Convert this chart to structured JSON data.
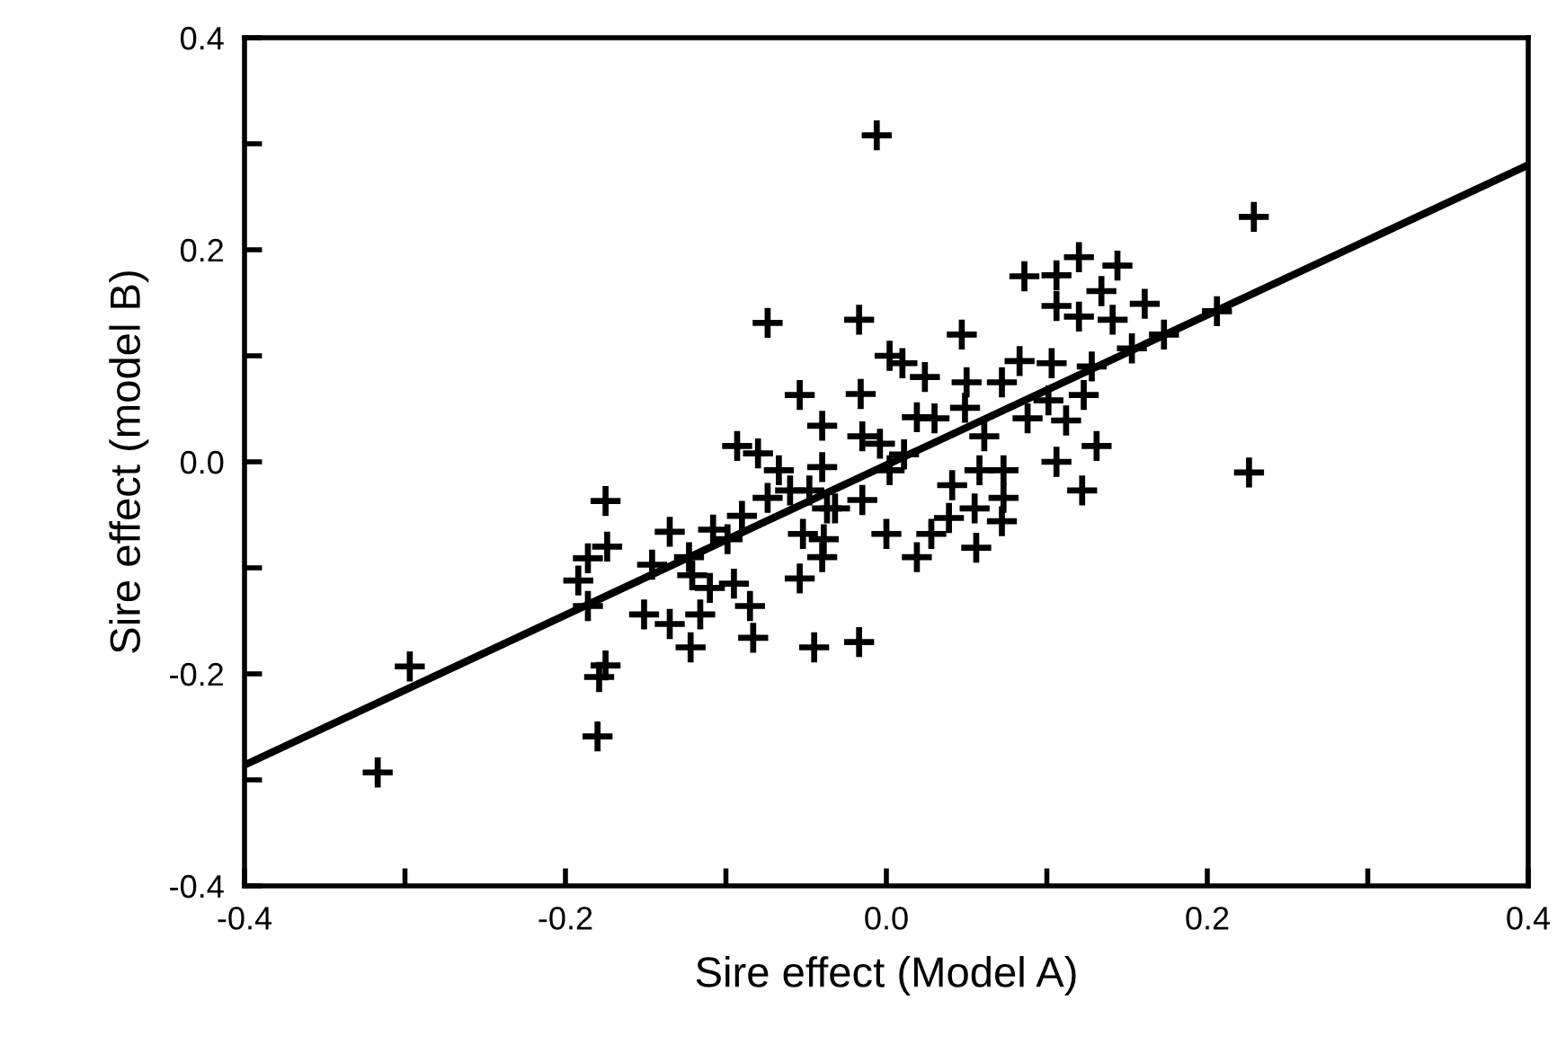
{
  "chart_data": {
    "type": "scatter",
    "xlabel": "Sire effect (Model A)",
    "ylabel": "Sire effect (model B)",
    "xlim": [
      -0.4,
      0.4
    ],
    "ylim": [
      -0.4,
      0.4
    ],
    "xticks": [
      {
        "value": -0.4,
        "label": "-0.4"
      },
      {
        "value": -0.3,
        "label": null
      },
      {
        "value": -0.2,
        "label": "-0.2"
      },
      {
        "value": -0.1,
        "label": null
      },
      {
        "value": 0,
        "label": "0.0"
      },
      {
        "value": 0.1,
        "label": null
      },
      {
        "value": 0.2,
        "label": "0.2"
      },
      {
        "value": 0.3,
        "label": null
      },
      {
        "value": 0.4,
        "label": "0.4"
      }
    ],
    "yticks": [
      {
        "value": -0.4,
        "label": "-0.4"
      },
      {
        "value": -0.3,
        "label": null
      },
      {
        "value": -0.2,
        "label": "-0.2"
      },
      {
        "value": -0.1,
        "label": null
      },
      {
        "value": 0,
        "label": "0.0"
      },
      {
        "value": 0.1,
        "label": null
      },
      {
        "value": 0.2,
        "label": "0.2"
      },
      {
        "value": 0.3,
        "label": null
      },
      {
        "value": 0.4,
        "label": "0.4"
      }
    ],
    "grid": false,
    "legend": false,
    "marker": "cross",
    "series": [
      {
        "color": "#000000",
        "x": [
          -0.317,
          -0.297,
          -0.006,
          0.229,
          -0.074,
          -0.054,
          -0.04,
          -0.175,
          -0.174,
          -0.186,
          -0.192,
          -0.186,
          -0.146,
          -0.135,
          -0.123,
          -0.121,
          -0.108,
          -0.099,
          -0.095,
          -0.085,
          -0.11,
          -0.151,
          -0.135,
          -0.116,
          -0.122,
          -0.083,
          -0.045,
          -0.054,
          -0.175,
          -0.179,
          -0.18,
          -0.093,
          -0.08,
          -0.067,
          -0.074,
          -0.09,
          -0.06,
          -0.048,
          -0.04,
          -0.052,
          -0.039,
          -0.04,
          -0.037,
          -0.017,
          0.047,
          0.086,
          0.106,
          0.12,
          0.144,
          0.134,
          0.106,
          0.12,
          0.141,
          0.161,
          0.206,
          0.173,
          0.153,
          0.128,
          0.103,
          0.083,
          0.123,
          0.101,
          0.088,
          0.112,
          0.131,
          0.106,
          0.122,
          0.226,
          -0.016,
          0.002,
          0.01,
          0.024,
          0.05,
          0.072,
          0.049,
          0.061,
          0.019,
          0.03,
          -0.015,
          0.002,
          -0.015,
          -0.032,
          0.041,
          0.058,
          0.073,
          0.073,
          0.072,
          0.055,
          0.039,
          0.028,
          0.019,
          0.056,
          0.0,
          -0.017,
          -0.004,
          0.011
        ],
        "values": [
          -0.293,
          -0.193,
          0.308,
          0.231,
          0.131,
          0.063,
          0.034,
          -0.037,
          -0.08,
          -0.091,
          -0.112,
          -0.136,
          -0.097,
          -0.066,
          -0.09,
          -0.107,
          -0.064,
          -0.073,
          -0.115,
          -0.136,
          -0.119,
          -0.144,
          -0.153,
          -0.144,
          -0.175,
          -0.166,
          -0.175,
          -0.11,
          -0.192,
          -0.203,
          -0.259,
          0.015,
          0.008,
          -0.008,
          -0.034,
          -0.051,
          -0.027,
          -0.027,
          -0.005,
          -0.068,
          -0.073,
          -0.09,
          -0.044,
          0.134,
          0.12,
          0.175,
          0.176,
          0.193,
          0.185,
          0.161,
          0.147,
          0.137,
          0.134,
          0.149,
          0.142,
          0.12,
          0.107,
          0.09,
          0.093,
          0.095,
          0.063,
          0.058,
          0.041,
          0.039,
          0.015,
          0.0,
          -0.027,
          -0.01,
          0.064,
          0.1,
          0.093,
          0.08,
          0.075,
          0.075,
          0.051,
          0.024,
          0.042,
          0.041,
          0.024,
          -0.008,
          -0.036,
          -0.044,
          -0.022,
          -0.008,
          -0.008,
          -0.034,
          -0.056,
          -0.044,
          -0.053,
          -0.068,
          -0.09,
          -0.081,
          -0.068,
          -0.17,
          0.017,
          0.007
        ]
      },
      {
        "type": "line",
        "color": "#000000",
        "x": [
          -0.4,
          0.4
        ],
        "values": [
          -0.286,
          0.28
        ],
        "marker": "none",
        "line_style": "solid"
      }
    ]
  }
}
